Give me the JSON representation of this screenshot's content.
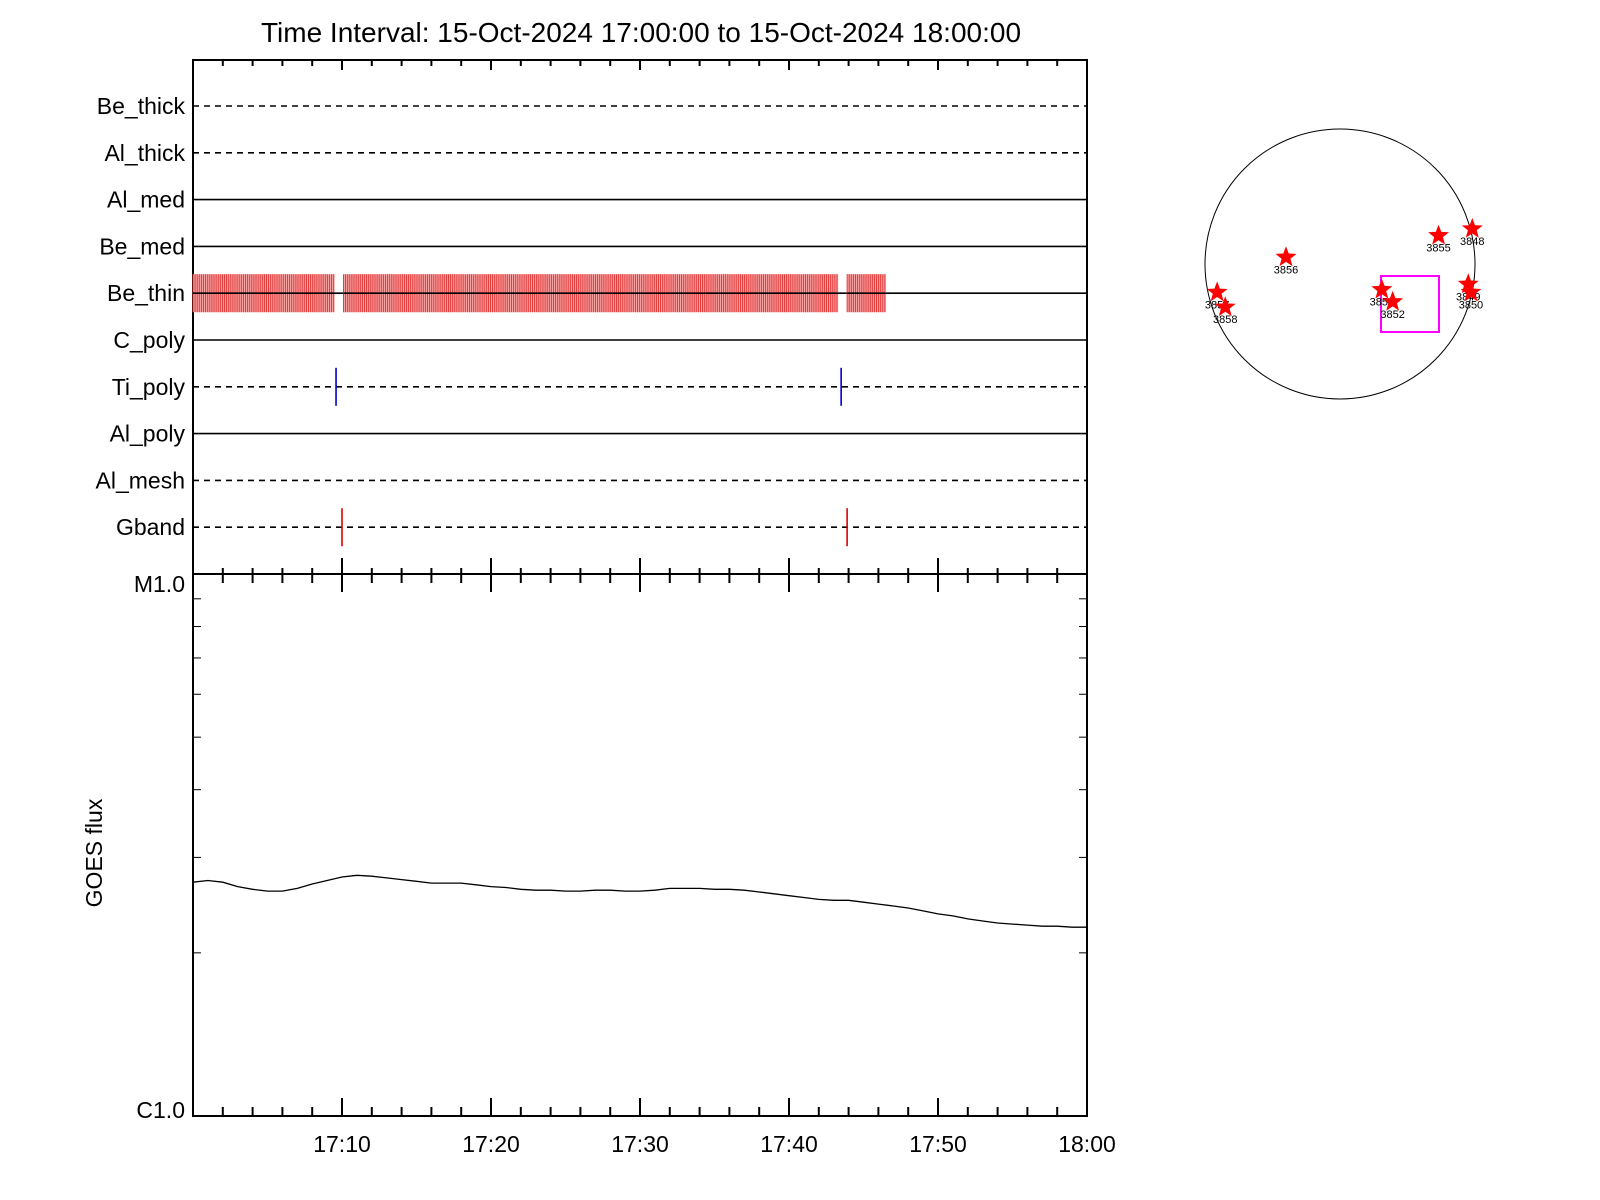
{
  "chart_data": [
    {
      "type": "timeline",
      "title": "Time Interval: 15-Oct-2024 17:00:00 to 15-Oct-2024 18:00:00",
      "x_range": [
        "17:00",
        "18:00"
      ],
      "rows": [
        {
          "label": "Be_thick",
          "line": "dashed"
        },
        {
          "label": "Al_thick",
          "line": "dashed"
        },
        {
          "label": "Al_med",
          "line": "solid"
        },
        {
          "label": "Be_med",
          "line": "solid"
        },
        {
          "label": "Be_thin",
          "line": "solid"
        },
        {
          "label": "C_poly",
          "line": "solid"
        },
        {
          "label": "Ti_poly",
          "line": "dashed"
        },
        {
          "label": "Al_poly",
          "line": "solid"
        },
        {
          "label": "Al_mesh",
          "line": "dashed"
        },
        {
          "label": "Gband",
          "line": "dashed"
        }
      ],
      "coverage_blocks": [
        {
          "row": "Be_thin",
          "start": "17:00",
          "end": "17:09.5"
        },
        {
          "row": "Be_thin",
          "start": "17:10.1",
          "end": "17:43.3"
        },
        {
          "row": "Be_thin",
          "start": "17:43.9",
          "end": "17:46.5"
        }
      ],
      "event_ticks": [
        {
          "row": "Ti_poly",
          "time": "17:09.6",
          "color": "#0000cc"
        },
        {
          "row": "Ti_poly",
          "time": "17:43.5",
          "color": "#0000cc"
        },
        {
          "row": "Gband",
          "time": "17:10.0",
          "color": "#dd0000"
        },
        {
          "row": "Gband",
          "time": "17:43.9",
          "color": "#dd0000"
        }
      ]
    },
    {
      "type": "line",
      "ylabel": "GOES flux",
      "y_top_label": "M1.0",
      "y_bottom_label": "C1.0",
      "y_scale": "log",
      "ylim": [
        1e-06,
        1e-05
      ],
      "x_tick_labels": [
        "17:10",
        "17:20",
        "17:30",
        "17:40",
        "17:50",
        "18:00"
      ],
      "series": [
        {
          "x_minutes": [
            0,
            1,
            2,
            3,
            4,
            5,
            6,
            7,
            8,
            9,
            10,
            11,
            12,
            13,
            14,
            15,
            16,
            17,
            18,
            19,
            20,
            21,
            22,
            23,
            24,
            25,
            26,
            27,
            28,
            29,
            30,
            31,
            32,
            33,
            34,
            35,
            36,
            37,
            38,
            39,
            40,
            41,
            42,
            43,
            44,
            45,
            46,
            47,
            48,
            49,
            50,
            51,
            52,
            53,
            54,
            55,
            56,
            57,
            58,
            59,
            60
          ],
          "flux": [
            2.7e-06,
            2.72e-06,
            2.7e-06,
            2.65e-06,
            2.62e-06,
            2.6e-06,
            2.6e-06,
            2.63e-06,
            2.68e-06,
            2.72e-06,
            2.76e-06,
            2.78e-06,
            2.77e-06,
            2.75e-06,
            2.73e-06,
            2.71e-06,
            2.69e-06,
            2.69e-06,
            2.69e-06,
            2.67e-06,
            2.65e-06,
            2.64e-06,
            2.62e-06,
            2.61e-06,
            2.61e-06,
            2.6e-06,
            2.6e-06,
            2.61e-06,
            2.61e-06,
            2.6e-06,
            2.6e-06,
            2.61e-06,
            2.63e-06,
            2.63e-06,
            2.63e-06,
            2.62e-06,
            2.62e-06,
            2.61e-06,
            2.59e-06,
            2.57e-06,
            2.55e-06,
            2.53e-06,
            2.51e-06,
            2.5e-06,
            2.5e-06,
            2.48e-06,
            2.46e-06,
            2.44e-06,
            2.42e-06,
            2.39e-06,
            2.36e-06,
            2.34e-06,
            2.31e-06,
            2.29e-06,
            2.27e-06,
            2.26e-06,
            2.25e-06,
            2.24e-06,
            2.24e-06,
            2.23e-06,
            2.23e-06
          ]
        }
      ]
    },
    {
      "type": "scatter",
      "description_of_content": "solar disk map",
      "selection_box_color": "#ff00ff",
      "star_color": "#ff0000",
      "points": [
        {
          "label": "3856",
          "x": -0.4,
          "y": 0.05
        },
        {
          "label": "3855",
          "x": 0.73,
          "y": 0.21
        },
        {
          "label": "3848",
          "x": 0.98,
          "y": 0.26
        },
        {
          "label": "3857",
          "x": -0.91,
          "y": -0.21
        },
        {
          "label": "3858",
          "x": -0.85,
          "y": -0.32
        },
        {
          "label": "3854",
          "x": 0.31,
          "y": -0.19
        },
        {
          "label": "3852",
          "x": 0.39,
          "y": -0.28
        },
        {
          "label": "3849",
          "x": 0.95,
          "y": -0.15
        },
        {
          "label": "3850",
          "x": 0.97,
          "y": -0.21
        }
      ]
    }
  ]
}
